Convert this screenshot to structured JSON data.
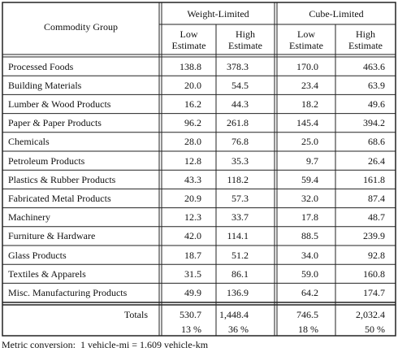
{
  "table": {
    "header": {
      "row_label": "Commodity Group",
      "groups": [
        {
          "label": "Weight-Limited",
          "columns": [
            "Low Estimate",
            "High Estimate"
          ]
        },
        {
          "label": "Cube-Limited",
          "columns": [
            "Low Estimate",
            "High Estimate"
          ]
        }
      ]
    },
    "rows": [
      [
        "Processed Foods",
        "138.8",
        "378.3",
        "170.0",
        "463.6"
      ],
      [
        "Building Materials",
        "20.0",
        "54.5",
        "23.4",
        "63.9"
      ],
      [
        "Lumber & Wood Products",
        "16.2",
        "44.3",
        "18.2",
        "49.6"
      ],
      [
        "Paper & Paper Products",
        "96.2",
        "261.8",
        "145.4",
        "394.2"
      ],
      [
        "Chemicals",
        "28.0",
        "76.8",
        "25.0",
        "68.6"
      ],
      [
        "Petroleum Products",
        "12.8",
        "35.3",
        "9.7",
        "26.4"
      ],
      [
        "Plastics & Rubber Products",
        "43.3",
        "118.2",
        "59.4",
        "161.8"
      ],
      [
        "Fabricated Metal Products",
        "20.9",
        "57.3",
        "32.0",
        "87.4"
      ],
      [
        "Machinery",
        "12.3",
        "33.7",
        "17.8",
        "48.7"
      ],
      [
        "Furniture & Hardware",
        "42.0",
        "114.1",
        "88.5",
        "239.9"
      ],
      [
        "Glass Products",
        "18.7",
        "51.2",
        "34.0",
        "92.8"
      ],
      [
        "Textiles & Apparels",
        "31.5",
        "86.1",
        "59.0",
        "160.8"
      ],
      [
        "Misc. Manufacturing Products",
        "49.9",
        "136.9",
        "64.2",
        "174.7"
      ]
    ],
    "totals": {
      "label": "Totals",
      "values": [
        "530.7",
        "1,448.4",
        "746.5",
        "2,032.4"
      ],
      "percentages": [
        "13 %",
        "36 %",
        "18 %",
        "50 %"
      ]
    }
  },
  "footnote": "Metric conversion:  1 vehicle-mi = 1.609 vehicle-km"
}
